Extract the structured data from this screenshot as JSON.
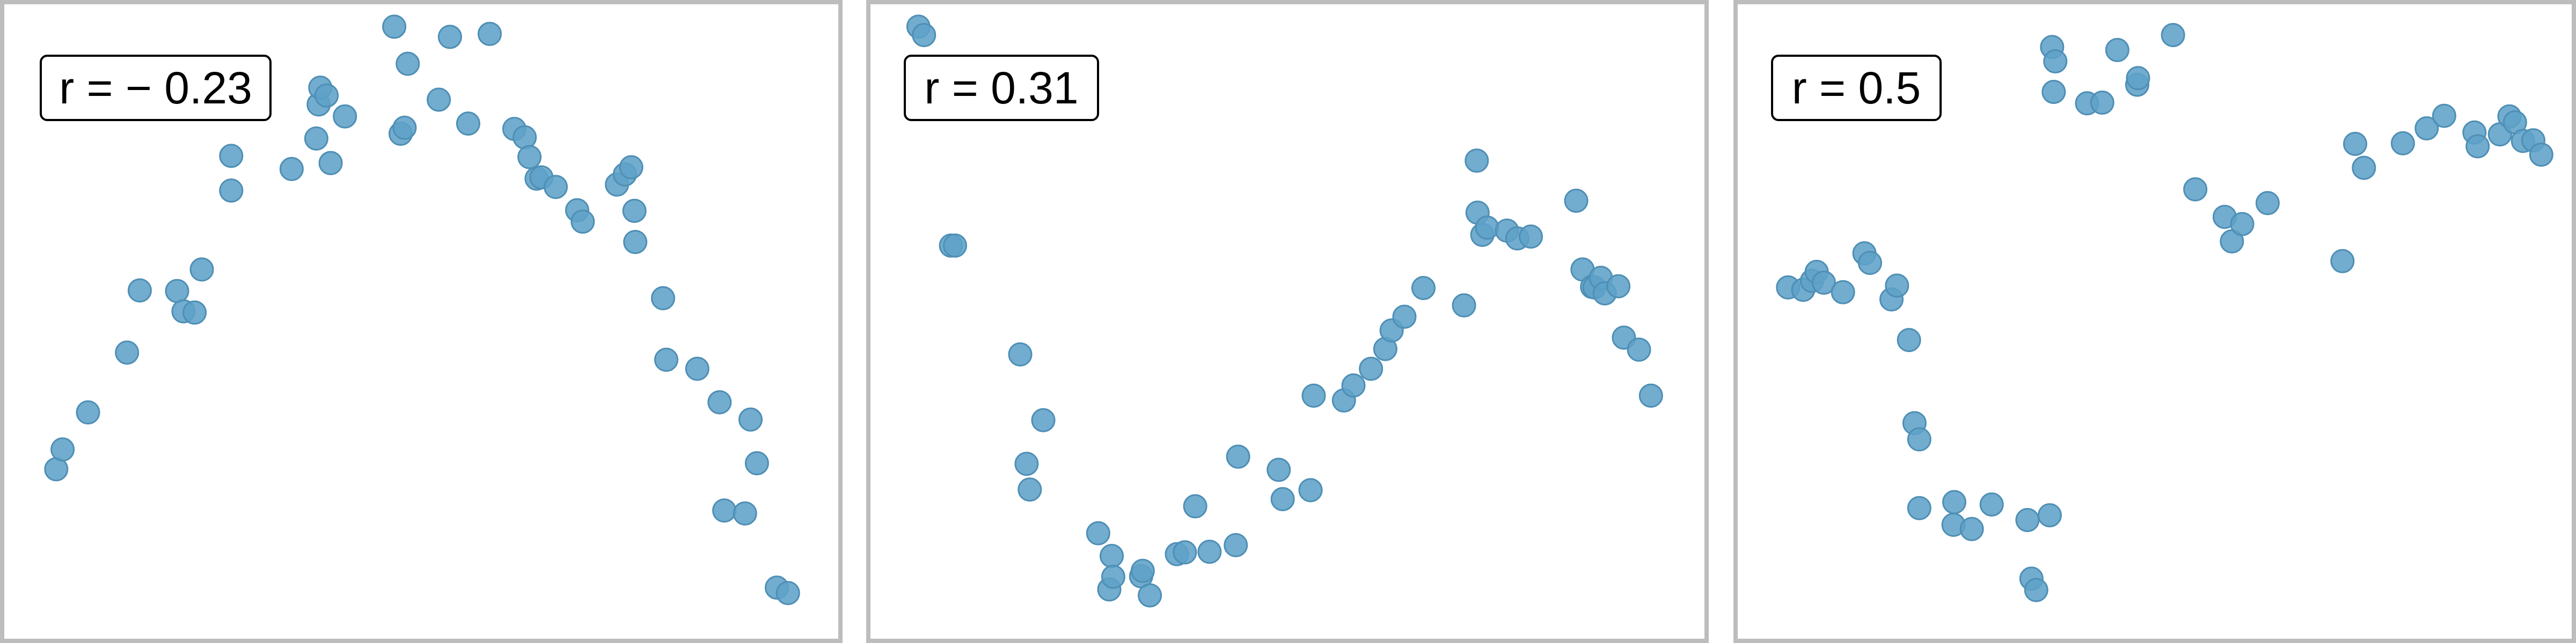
{
  "chart_data": [
    {
      "type": "scatter",
      "title": "",
      "xlabel": "",
      "ylabel": "",
      "annotation": "r = − 0.23",
      "grid": false,
      "axes_visible": false,
      "xlim": [
        0,
        100
      ],
      "ylim": [
        0,
        100
      ],
      "x": [
        4.1,
        4.9,
        8.1,
        13,
        14.6,
        19.3,
        20.1,
        21.5,
        22.4,
        26.1,
        26.1,
        33.7,
        36.8,
        37.1,
        37.3,
        38.1,
        38.6,
        40.4,
        46.6,
        47.4,
        47.9,
        48.3,
        52.2,
        53.6,
        55.9,
        58.6,
        61.7,
        63,
        63.6,
        64.5,
        65.1,
        66.9,
        69.6,
        70.3,
        74.6,
        75.6,
        76.4,
        76.8,
        76.9,
        80.4,
        80.8,
        84.7,
        87.5,
        91.4,
        92.2,
        88.1,
        90.7,
        94.7,
        96.1
      ],
      "y": [
        25.3,
        28.6,
        34.8,
        44.8,
        55.2,
        55.1,
        51.7,
        51.5,
        58.7,
        71.9,
        77.7,
        75.5,
        80.6,
        86.3,
        89.1,
        87.8,
        76.5,
        84.3,
        99.3,
        81.4,
        82.4,
        93.1,
        87.1,
        97.6,
        83.1,
        98.1,
        82.2,
        80.8,
        77.5,
        73.9,
        74.1,
        72.5,
        68.6,
        66.7,
        72.9,
        74.6,
        75.8,
        68.5,
        63.3,
        53.9,
        43.6,
        42.1,
        36.5,
        33.6,
        26.3,
        18.4,
        17.9,
        5.5,
        4.6
      ]
    },
    {
      "type": "scatter",
      "title": "",
      "xlabel": "",
      "ylabel": "",
      "annotation": "r = 0.31",
      "grid": false,
      "axes_visible": false,
      "xlim": [
        0,
        100
      ],
      "ylim": [
        0,
        100
      ],
      "x": [
        3.6,
        4.3,
        7.7,
        8.2,
        16.4,
        17.2,
        17.6,
        19.3,
        26.2,
        27.9,
        27.6,
        28.1,
        31.6,
        31.8,
        32.7,
        36.1,
        37.1,
        38.4,
        40.2,
        43.5,
        43.8,
        48.9,
        49.4,
        52.9,
        53.3,
        57.1,
        58.3,
        60.5,
        62.3,
        63.1,
        64.7,
        67.1,
        72.2,
        73.8,
        73.9,
        74.5,
        75.1,
        77.6,
        78.9,
        80.6,
        86.3,
        87.1,
        88.3,
        88.6,
        89.4,
        89.9,
        91.6,
        92.3,
        94.2,
        95.7
      ],
      "y": [
        99.3,
        97.9,
        62.7,
        62.7,
        44.5,
        26.2,
        21.9,
        33.5,
        14.6,
        10.8,
        5.2,
        7.3,
        7.4,
        8.3,
        4.2,
        11.1,
        11.4,
        19.1,
        11.5,
        12.6,
        27.4,
        25.2,
        20.3,
        21.8,
        37.6,
        36.8,
        39.3,
        42.1,
        45.4,
        48.5,
        50.8,
        55.6,
        52.7,
        76.9,
        68.2,
        64.5,
        65.7,
        65.2,
        63.9,
        64.2,
        70.2,
        58.7,
        55.8,
        55.7,
        57.3,
        54.7,
        55.9,
        47.3,
        45.3,
        37.6
      ],
      "y_note": "reorder-not-needed"
    },
    {
      "type": "scatter",
      "title": "",
      "xlabel": "",
      "ylabel": "",
      "annotation": "r = 0.5",
      "grid": false,
      "axes_visible": false,
      "xlim": [
        0,
        100
      ],
      "ylim": [
        0,
        100
      ],
      "x": [
        3.9,
        5.8,
        6.9,
        7.5,
        8.4,
        10.8,
        13.5,
        14.2,
        16.9,
        17.6,
        19.1,
        19.8,
        20.4,
        20.4,
        24.7,
        24.8,
        27,
        29.5,
        34,
        34.5,
        35.1,
        36.8,
        37.1,
        37.3,
        37.5,
        41.5,
        43.4,
        45.3,
        47.8,
        47.9,
        52.3,
        55.1,
        58.8,
        59.7,
        61,
        64.2,
        73.6,
        75.2,
        76.3,
        81.2,
        84.2,
        86.4,
        90.2,
        90.6,
        93.4,
        94.6,
        95.3,
        96.3,
        97.6,
        98.6
      ],
      "y": [
        55.7,
        55.3,
        56.8,
        58.3,
        56.5,
        54.9,
        61.4,
        59.8,
        53.7,
        56,
        46.9,
        33,
        30.3,
        18.8,
        16,
        19.8,
        15.3,
        19.4,
        16.8,
        7,
        5.1,
        17.6,
        95.9,
        88.4,
        93.5,
        86.5,
        86.6,
        95.4,
        89.6,
        90.7,
        97.9,
        72.1,
        67.5,
        63.4,
        66.3,
        69.8,
        60.1,
        79.7,
        75.7,
        79.8,
        82.3,
        84.4,
        81.6,
        79.3,
        81.3,
        84.3,
        83.3,
        80.2,
        80.3,
        77.9
      ]
    }
  ],
  "style": {
    "point_color": "#5fa2c8",
    "point_stroke": "#4f8fb5",
    "frame_color": "#bdbdbd",
    "label_border_color": "#000000"
  }
}
